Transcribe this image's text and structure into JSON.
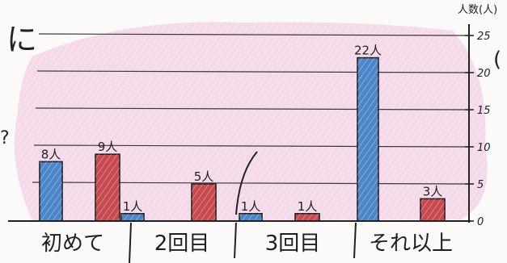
{
  "page": {
    "fragments": {
      "top_left": "に",
      "mid_left": "?",
      "right_edge": "("
    }
  },
  "chart_data": {
    "type": "bar",
    "title": "",
    "xlabel": "",
    "ylabel": "人数(人)",
    "ylim": [
      0,
      25
    ],
    "yticks": [
      0,
      5,
      10,
      15,
      20,
      25
    ],
    "grid": true,
    "legend": "none",
    "categories": [
      "初めて",
      "2回目",
      "3回目",
      "それ以上"
    ],
    "series": [
      {
        "color": "#4a86c8",
        "values": [
          8,
          1,
          1,
          22
        ],
        "labels": [
          "8人",
          "1人",
          "1人",
          "22人"
        ]
      },
      {
        "color": "#c8494f",
        "values": [
          9,
          5,
          1,
          3
        ],
        "labels": [
          "9人",
          "5人",
          "1人",
          "3人"
        ]
      }
    ]
  },
  "colors": {
    "background_wash": "#f2cde4",
    "ink": "#1f1f1f",
    "grid": "#3a3a3a"
  }
}
